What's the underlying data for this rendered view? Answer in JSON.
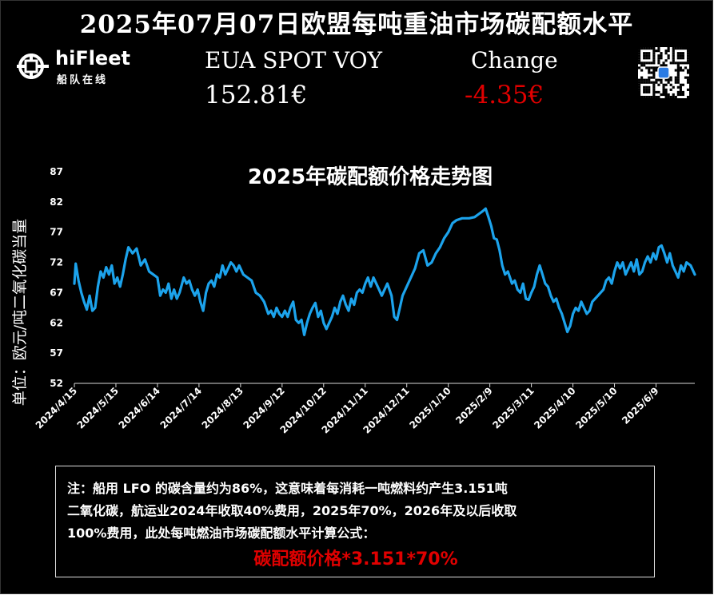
{
  "header": {
    "title": "2025年07月07日欧盟每吨重油市场碳配额水平",
    "eua_label": "EUA SPOT VOY",
    "eua_price": "152.81€",
    "change_label": "Change",
    "change_value": "-4.35€"
  },
  "brand": {
    "name": "hiFleet",
    "subname": "船队在线",
    "logo_icon": "ship-wheel-icon",
    "qr_icon": "qr-code-icon"
  },
  "colors": {
    "background": "#000000",
    "line": "#1ca3ec",
    "negative": "#e00000",
    "text": "#ffffff"
  },
  "chart_data": {
    "type": "line",
    "title": "2025年碳配额价格走势图",
    "ylabel": "单位：欧元/吨二氧化碳当量",
    "xlabel": "",
    "ylim": [
      52,
      87
    ],
    "yticks": [
      52,
      57,
      62,
      67,
      72,
      77,
      82,
      87
    ],
    "grid": false,
    "legend": "none",
    "x_ticks": [
      "2024/4/15",
      "2024/5/15",
      "2024/6/14",
      "2024/7/14",
      "2024/8/13",
      "2024/9/12",
      "2024/10/12",
      "2024/11/11",
      "2024/12/11",
      "2025/1/10",
      "2025/2/9",
      "2025/3/11",
      "2025/4/10",
      "2025/5/10",
      "2025/6/9"
    ],
    "x_range": [
      "2024-04-15",
      "2025-07-07"
    ],
    "series": [
      {
        "values": [
          [
            "2024-04-15",
            68.5
          ],
          [
            "2024-04-16",
            71.8
          ],
          [
            "2024-04-18",
            69.0
          ],
          [
            "2024-04-20",
            67.0
          ],
          [
            "2024-04-22",
            65.5
          ],
          [
            "2024-04-24",
            64.2
          ],
          [
            "2024-04-26",
            66.5
          ],
          [
            "2024-04-28",
            64.0
          ],
          [
            "2024-04-30",
            64.5
          ],
          [
            "2024-05-02",
            68.0
          ],
          [
            "2024-05-04",
            70.5
          ],
          [
            "2024-05-06",
            69.5
          ],
          [
            "2024-05-08",
            71.2
          ],
          [
            "2024-05-10",
            70.0
          ],
          [
            "2024-05-12",
            71.5
          ],
          [
            "2024-05-14",
            68.5
          ],
          [
            "2024-05-16",
            69.5
          ],
          [
            "2024-05-18",
            68.0
          ],
          [
            "2024-05-20",
            70.0
          ],
          [
            "2024-05-22",
            72.5
          ],
          [
            "2024-05-24",
            74.5
          ],
          [
            "2024-05-27",
            73.5
          ],
          [
            "2024-05-30",
            74.3
          ],
          [
            "2024-06-02",
            71.5
          ],
          [
            "2024-06-05",
            72.5
          ],
          [
            "2024-06-08",
            70.5
          ],
          [
            "2024-06-11",
            70.0
          ],
          [
            "2024-06-14",
            69.5
          ],
          [
            "2024-06-16",
            66.5
          ],
          [
            "2024-06-18",
            67.5
          ],
          [
            "2024-06-20",
            67.0
          ],
          [
            "2024-06-22",
            68.5
          ],
          [
            "2024-06-24",
            66.0
          ],
          [
            "2024-06-26",
            67.5
          ],
          [
            "2024-06-28",
            66.0
          ],
          [
            "2024-06-30",
            67.0
          ],
          [
            "2024-07-03",
            69.5
          ],
          [
            "2024-07-05",
            68.5
          ],
          [
            "2024-07-07",
            69.0
          ],
          [
            "2024-07-09",
            67.5
          ],
          [
            "2024-07-11",
            66.5
          ],
          [
            "2024-07-13",
            67.5
          ],
          [
            "2024-07-15",
            65.5
          ],
          [
            "2024-07-17",
            64.0
          ],
          [
            "2024-07-19",
            67.0
          ],
          [
            "2024-07-21",
            68.5
          ],
          [
            "2024-07-23",
            69.0
          ],
          [
            "2024-07-25",
            68.0
          ],
          [
            "2024-07-27",
            70.0
          ],
          [
            "2024-07-29",
            69.5
          ],
          [
            "2024-07-31",
            71.5
          ],
          [
            "2024-08-02",
            70.0
          ],
          [
            "2024-08-04",
            71.0
          ],
          [
            "2024-08-06",
            72.0
          ],
          [
            "2024-08-08",
            71.5
          ],
          [
            "2024-08-10",
            70.5
          ],
          [
            "2024-08-12",
            71.5
          ],
          [
            "2024-08-15",
            70.0
          ],
          [
            "2024-08-18",
            69.5
          ],
          [
            "2024-08-21",
            69.0
          ],
          [
            "2024-08-24",
            67.0
          ],
          [
            "2024-08-27",
            66.5
          ],
          [
            "2024-08-30",
            65.5
          ],
          [
            "2024-09-02",
            63.5
          ],
          [
            "2024-09-04",
            64.0
          ],
          [
            "2024-09-06",
            63.0
          ],
          [
            "2024-09-08",
            64.5
          ],
          [
            "2024-09-10",
            63.5
          ],
          [
            "2024-09-12",
            63.0
          ],
          [
            "2024-09-14",
            64.0
          ],
          [
            "2024-09-16",
            63.0
          ],
          [
            "2024-09-18",
            64.5
          ],
          [
            "2024-09-20",
            65.5
          ],
          [
            "2024-09-22",
            62.5
          ],
          [
            "2024-09-24",
            62.0
          ],
          [
            "2024-09-26",
            62.5
          ],
          [
            "2024-09-28",
            60.0
          ],
          [
            "2024-09-30",
            62.0
          ],
          [
            "2024-10-02",
            63.5
          ],
          [
            "2024-10-04",
            64.5
          ],
          [
            "2024-10-06",
            65.3
          ],
          [
            "2024-10-08",
            63.0
          ],
          [
            "2024-10-10",
            64.0
          ],
          [
            "2024-10-12",
            62.0
          ],
          [
            "2024-10-14",
            61.0
          ],
          [
            "2024-10-16",
            62.0
          ],
          [
            "2024-10-18",
            63.0
          ],
          [
            "2024-10-20",
            64.5
          ],
          [
            "2024-10-22",
            63.5
          ],
          [
            "2024-10-24",
            65.5
          ],
          [
            "2024-10-26",
            66.5
          ],
          [
            "2024-10-28",
            65.0
          ],
          [
            "2024-10-30",
            64.0
          ],
          [
            "2024-11-01",
            66.0
          ],
          [
            "2024-11-03",
            65.0
          ],
          [
            "2024-11-05",
            67.0
          ],
          [
            "2024-11-07",
            67.5
          ],
          [
            "2024-11-09",
            67.0
          ],
          [
            "2024-11-11",
            68.5
          ],
          [
            "2024-11-13",
            69.5
          ],
          [
            "2024-11-15",
            68.0
          ],
          [
            "2024-11-17",
            69.5
          ],
          [
            "2024-11-19",
            68.5
          ],
          [
            "2024-11-21",
            67.5
          ],
          [
            "2024-11-23",
            66.5
          ],
          [
            "2024-11-25",
            67.5
          ],
          [
            "2024-11-27",
            68.5
          ],
          [
            "2024-11-30",
            66.5
          ],
          [
            "2024-12-02",
            63.0
          ],
          [
            "2024-12-04",
            62.5
          ],
          [
            "2024-12-06",
            64.5
          ],
          [
            "2024-12-08",
            66.5
          ],
          [
            "2024-12-10",
            67.5
          ],
          [
            "2024-12-12",
            68.5
          ],
          [
            "2024-12-14",
            69.5
          ],
          [
            "2024-12-17",
            71.0
          ],
          [
            "2024-12-20",
            73.5
          ],
          [
            "2024-12-23",
            74.0
          ],
          [
            "2024-12-26",
            71.5
          ],
          [
            "2024-12-29",
            72.0
          ],
          [
            "2025-01-01",
            73.5
          ],
          [
            "2025-01-04",
            74.5
          ],
          [
            "2025-01-07",
            76.0
          ],
          [
            "2025-01-10",
            77.0
          ],
          [
            "2025-01-13",
            78.5
          ],
          [
            "2025-01-16",
            79.0
          ],
          [
            "2025-01-20",
            79.3
          ],
          [
            "2025-01-25",
            79.3
          ],
          [
            "2025-01-29",
            79.5
          ],
          [
            "2025-02-01",
            80.0
          ],
          [
            "2025-02-04",
            80.5
          ],
          [
            "2025-02-06",
            80.9
          ],
          [
            "2025-02-08",
            79.5
          ],
          [
            "2025-02-10",
            78.0
          ],
          [
            "2025-02-12",
            76.0
          ],
          [
            "2025-02-14",
            75.8
          ],
          [
            "2025-02-16",
            74.0
          ],
          [
            "2025-02-18",
            71.5
          ],
          [
            "2025-02-20",
            70.0
          ],
          [
            "2025-02-22",
            70.5
          ],
          [
            "2025-02-25",
            68.5
          ],
          [
            "2025-02-27",
            69.0
          ],
          [
            "2025-03-01",
            67.5
          ],
          [
            "2025-03-03",
            67.0
          ],
          [
            "2025-03-05",
            68.5
          ],
          [
            "2025-03-07",
            66.0
          ],
          [
            "2025-03-09",
            65.8
          ],
          [
            "2025-03-11",
            67.0
          ],
          [
            "2025-03-13",
            68.0
          ],
          [
            "2025-03-15",
            70.0
          ],
          [
            "2025-03-17",
            71.5
          ],
          [
            "2025-03-19",
            70.0
          ],
          [
            "2025-03-21",
            68.5
          ],
          [
            "2025-03-23",
            68.0
          ],
          [
            "2025-03-25",
            66.5
          ],
          [
            "2025-03-27",
            65.5
          ],
          [
            "2025-03-29",
            66.0
          ],
          [
            "2025-03-31",
            64.5
          ],
          [
            "2025-04-02",
            63.5
          ],
          [
            "2025-04-04",
            62.0
          ],
          [
            "2025-04-06",
            60.5
          ],
          [
            "2025-04-08",
            61.5
          ],
          [
            "2025-04-10",
            63.5
          ],
          [
            "2025-04-12",
            64.5
          ],
          [
            "2025-04-14",
            64.0
          ],
          [
            "2025-04-16",
            65.5
          ],
          [
            "2025-04-18",
            64.5
          ],
          [
            "2025-04-20",
            63.5
          ],
          [
            "2025-04-22",
            64.0
          ],
          [
            "2025-04-24",
            65.5
          ],
          [
            "2025-04-26",
            66.0
          ],
          [
            "2025-04-28",
            66.5
          ],
          [
            "2025-04-30",
            67.0
          ],
          [
            "2025-05-02",
            67.5
          ],
          [
            "2025-05-04",
            69.0
          ],
          [
            "2025-05-06",
            69.5
          ],
          [
            "2025-05-08",
            68.5
          ],
          [
            "2025-05-10",
            70.5
          ],
          [
            "2025-05-12",
            72.0
          ],
          [
            "2025-05-14",
            71.0
          ],
          [
            "2025-05-16",
            72.0
          ],
          [
            "2025-05-18",
            70.0
          ],
          [
            "2025-05-20",
            71.0
          ],
          [
            "2025-05-22",
            72.0
          ],
          [
            "2025-05-24",
            70.5
          ],
          [
            "2025-05-26",
            72.5
          ],
          [
            "2025-05-28",
            70.0
          ],
          [
            "2025-05-30",
            70.5
          ],
          [
            "2025-06-01",
            72.0
          ],
          [
            "2025-06-03",
            73.0
          ],
          [
            "2025-06-05",
            72.0
          ],
          [
            "2025-06-07",
            73.5
          ],
          [
            "2025-06-09",
            72.5
          ],
          [
            "2025-06-11",
            74.5
          ],
          [
            "2025-06-13",
            74.8
          ],
          [
            "2025-06-15",
            73.5
          ],
          [
            "2025-06-17",
            72.0
          ],
          [
            "2025-06-19",
            73.5
          ],
          [
            "2025-06-21",
            71.5
          ],
          [
            "2025-06-23",
            70.5
          ],
          [
            "2025-06-25",
            69.5
          ],
          [
            "2025-06-27",
            71.5
          ],
          [
            "2025-06-29",
            70.5
          ],
          [
            "2025-07-01",
            72.0
          ],
          [
            "2025-07-04",
            71.5
          ],
          [
            "2025-07-07",
            70.0
          ]
        ]
      }
    ]
  },
  "note": {
    "line1": "注：船用 LFO 的碳含量约为86%，这意味着每消耗一吨燃料约产生3.151吨",
    "line2": "二氧化碳，航运业2024年收取40%费用，2025年70%，2026年及以后收取",
    "line3": "100%费用，此处每吨燃油市场碳配额水平计算公式：",
    "formula": "碳配额价格*3.151*70%"
  }
}
